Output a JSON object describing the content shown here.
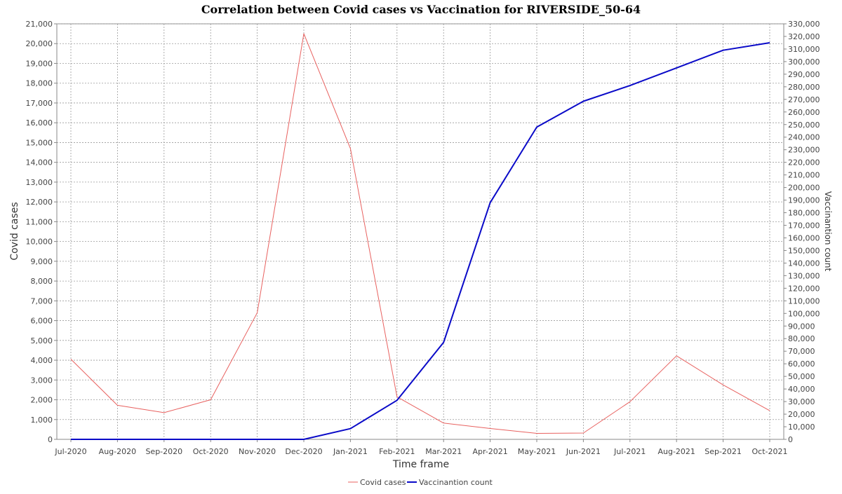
{
  "chart_data": {
    "type": "line",
    "title": "Correlation between Covid cases vs Vaccination for RIVERSIDE_50-64",
    "xlabel": "Time frame",
    "ylabel": "Covid cases",
    "y2label": "Vaccinantion count",
    "categories": [
      "Jul-2020",
      "Aug-2020",
      "Sep-2020",
      "Oct-2020",
      "Nov-2020",
      "Dec-2020",
      "Jan-2021",
      "Feb-2021",
      "Mar-2021",
      "Apr-2021",
      "May-2021",
      "Jun-2021",
      "Jul-2021",
      "Aug-2021",
      "Sep-2021",
      "Oct-2021"
    ],
    "ylim": [
      0,
      21000
    ],
    "y_ticks": [
      "0",
      "1,000",
      "2,000",
      "3,000",
      "4,000",
      "5,000",
      "6,000",
      "7,000",
      "8,000",
      "9,000",
      "10,000",
      "11,000",
      "12,000",
      "13,000",
      "14,000",
      "15,000",
      "16,000",
      "17,000",
      "18,000",
      "19,000",
      "20,000",
      "21,000"
    ],
    "y2lim": [
      0,
      330000
    ],
    "y2_ticks": [
      "0",
      "10,000",
      "20,000",
      "30,000",
      "40,000",
      "50,000",
      "60,000",
      "70,000",
      "80,000",
      "90,000",
      "100,000",
      "110,000",
      "120,000",
      "130,000",
      "140,000",
      "150,000",
      "160,000",
      "170,000",
      "180,000",
      "190,000",
      "200,000",
      "210,000",
      "220,000",
      "230,000",
      "240,000",
      "250,000",
      "260,000",
      "270,000",
      "280,000",
      "290,000",
      "300,000",
      "310,000",
      "320,000",
      "330,000"
    ],
    "grid": true,
    "legend_position": "bottom-center",
    "series": [
      {
        "name": "Covid cases",
        "axis": "left",
        "color": "#e8615f",
        "values": [
          4050,
          1720,
          1350,
          2000,
          6400,
          20500,
          14700,
          2150,
          820,
          550,
          300,
          320,
          1900,
          4220,
          2750,
          1450
        ]
      },
      {
        "name": "Vaccinantion count",
        "axis": "right",
        "color": "#0a0ac8",
        "values": [
          0,
          0,
          0,
          0,
          0,
          0,
          8500,
          31000,
          77000,
          188000,
          248000,
          268500,
          281000,
          295000,
          309000,
          315000
        ]
      }
    ]
  }
}
